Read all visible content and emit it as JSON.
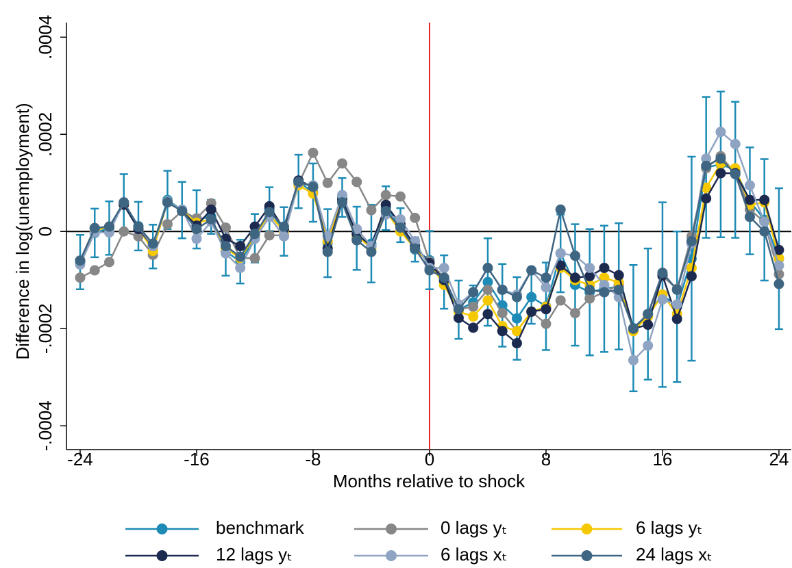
{
  "chart_data": {
    "type": "line",
    "x_label": "Months relative to shock",
    "y_label": "Difference in log(unemployment)",
    "x": [
      -24,
      -23,
      -22,
      -21,
      -20,
      -19,
      -18,
      -17,
      -16,
      -15,
      -14,
      -13,
      -12,
      -11,
      -10,
      -9,
      -8,
      -7,
      -6,
      -5,
      -4,
      -3,
      -2,
      -1,
      0,
      1,
      2,
      3,
      4,
      5,
      6,
      7,
      8,
      9,
      10,
      11,
      12,
      13,
      14,
      15,
      16,
      17,
      18,
      19,
      20,
      21,
      22,
      23,
      24
    ],
    "xlim": [
      -24.94,
      24.85
    ],
    "xticks": [
      -24,
      -16,
      -8,
      0,
      8,
      16,
      24
    ],
    "ylim": [
      -0.000449,
      0.00043
    ],
    "yticks": [
      {
        "value": -0.0004,
        "label": "-.0004"
      },
      {
        "value": -0.0002,
        "label": "-.0002"
      },
      0,
      {
        "value": 0.0002,
        "label": ".0002"
      },
      {
        "value": 0.0004,
        "label": ".0004"
      }
    ],
    "hline": 0,
    "hline_color": "#000000",
    "vline": 0,
    "vline_color": "#e8262a",
    "series": [
      {
        "name": "benchmark",
        "color": "#1d8bb5",
        "values": [
          -6.3e-05,
          -3e-06,
          7e-06,
          5.8e-05,
          1.1e-05,
          -3.1e-05,
          6.5e-05,
          4.4e-05,
          2.5e-05,
          3e-05,
          -4.1e-05,
          -6.2e-05,
          -1.4e-05,
          4.6e-05,
          0,
          0.000103,
          8e-05,
          -2.4e-05,
          7e-05,
          -1.4e-05,
          -2.5e-05,
          4.8e-05,
          1.3e-05,
          -3.7e-05,
          -5.9e-05,
          -0.000104,
          -0.000161,
          -0.000146,
          -0.000104,
          -0.000152,
          -0.000179,
          -0.000135,
          -0.000154,
          -4.5e-05,
          -0.00011,
          -0.000125,
          -0.000118,
          -0.000113,
          -0.000199,
          -0.00017,
          -0.00013,
          -0.000155,
          -5.6e-05,
          0.000132,
          0.000138,
          0.000127,
          6.3e-05,
          2.4e-05,
          -5.6e-05
        ],
        "errors": [
          5.6e-05,
          5e-05,
          5.5e-05,
          6e-05,
          5e-05,
          4.5e-05,
          6e-05,
          5.8e-05,
          6e-05,
          3.5e-05,
          5e-05,
          4.5e-05,
          5e-05,
          4.5e-05,
          5e-05,
          5.5e-05,
          6e-05,
          7e-05,
          4e-05,
          6.5e-05,
          8e-05,
          4.5e-05,
          3.5e-05,
          2.5e-05,
          6e-05,
          5.5e-05,
          6e-05,
          3.5e-05,
          9e-05,
          8.5e-05,
          8.5e-05,
          5.5e-05,
          9e-05,
          8e-05,
          0.000125,
          0.00013,
          0.00013,
          0.00013,
          0.00013,
          0.000135,
          0.00019,
          0.000155,
          0.00021,
          0.000145,
          0.00015,
          0.00014,
          0.00011,
          0.000125,
          0.000145
        ]
      },
      {
        "name": "0 lags yₜ",
        "color": "#878787",
        "values": [
          -9.5e-05,
          -8e-05,
          -6.3e-05,
          0,
          -1e-05,
          -4.8e-05,
          1.5e-05,
          4.2e-05,
          2.7e-05,
          5.8e-05,
          8e-06,
          -5.5e-05,
          -5.5e-05,
          -8e-06,
          -8e-06,
          9.8e-05,
          0.000162,
          0.0001,
          0.00014,
          0.000102,
          4.4e-05,
          7.5e-05,
          7.2e-05,
          2.8e-05,
          -6.2e-05,
          -9.5e-05,
          -0.00016,
          -0.000155,
          -0.00012,
          -0.000168,
          -0.000205,
          -0.000165,
          -0.00019,
          -0.000142,
          -0.000168,
          -0.000138,
          -0.000125,
          -0.00011,
          -0.000202,
          -0.00017,
          -9.2e-05,
          -0.000118,
          -1e-05,
          0.00013,
          0.000155,
          0.00012,
          4.5e-05,
          2e-05,
          -8.8e-05
        ]
      },
      {
        "name": "6 lags yₜ",
        "color": "#f6c800",
        "values": [
          -6e-05,
          2e-06,
          1e-05,
          5.5e-05,
          8e-06,
          -4e-05,
          6.2e-05,
          4.2e-05,
          1.8e-05,
          2.5e-05,
          -3.5e-05,
          -5.5e-05,
          -1e-05,
          3.5e-05,
          0,
          9.5e-05,
          7.8e-05,
          -2e-05,
          6.5e-05,
          -8e-06,
          -3.5e-05,
          4.2e-05,
          0,
          -3.5e-05,
          -6.5e-05,
          -0.00011,
          -0.000165,
          -0.000175,
          -0.000142,
          -0.000195,
          -0.000205,
          -0.000165,
          -0.000155,
          -7.5e-05,
          -0.0001,
          -0.00011,
          -9.5e-05,
          -0.000105,
          -0.000205,
          -0.000175,
          -0.00013,
          -0.00017,
          -7.5e-05,
          9e-05,
          0.00014,
          0.00013,
          5.5e-05,
          6e-05,
          -5.5e-05
        ]
      },
      {
        "name": "12 lags yₜ",
        "color": "#1d2a50",
        "values": [
          -6e-05,
          7e-06,
          1e-05,
          5.5e-05,
          5e-06,
          -3e-05,
          6e-05,
          4.2e-05,
          1.2e-05,
          4.5e-05,
          -1.5e-05,
          -3e-05,
          1e-05,
          5.2e-05,
          5e-06,
          0.000105,
          9.2e-05,
          -3.5e-05,
          6.5e-05,
          -5e-06,
          -3e-05,
          5.5e-05,
          1.5e-05,
          -3e-05,
          -6.5e-05,
          -0.0001,
          -0.000178,
          -0.000198,
          -0.00017,
          -0.000205,
          -0.00023,
          -0.000165,
          -0.00016,
          -7e-05,
          -9.5e-05,
          -9.2e-05,
          -7.5e-05,
          -9e-05,
          -0.0002,
          -0.000192,
          -9e-05,
          -0.00018,
          -9.2e-05,
          6.8e-05,
          0.00012,
          0.00012,
          6.5e-05,
          6.5e-05,
          -3.8e-05
        ]
      },
      {
        "name": "6 lags xₜ",
        "color": "#8fa4c2",
        "values": [
          -6.8e-05,
          -2e-06,
          -2e-06,
          6e-05,
          1e-05,
          -3e-05,
          6.2e-05,
          4.5e-05,
          -1.5e-05,
          2e-05,
          -4.5e-05,
          -7.5e-05,
          -1.5e-05,
          3e-05,
          -1e-05,
          0.0001,
          9.5e-05,
          -1e-05,
          7.5e-05,
          5e-06,
          -3e-05,
          3.5e-05,
          2.5e-05,
          -2e-05,
          -7.5e-05,
          -7.5e-05,
          -0.00015,
          -0.000125,
          -7.5e-05,
          -0.00012,
          -0.00013,
          -8e-05,
          -0.000115,
          -4.5e-05,
          -5e-05,
          -7.5e-05,
          -0.00011,
          -0.000135,
          -0.000265,
          -0.000235,
          -0.00014,
          -0.00015,
          -2.5e-05,
          0.00015,
          0.000205,
          0.00018,
          9.5e-05,
          2e-05,
          -7e-05
        ]
      },
      {
        "name": "24 lags xₜ",
        "color": "#3e6582",
        "values": [
          -6e-05,
          7e-06,
          1e-05,
          6e-05,
          1e-05,
          -2.5e-05,
          6e-05,
          4.2e-05,
          5e-06,
          2.5e-05,
          -3e-05,
          -5.2e-05,
          -5e-06,
          4e-05,
          1e-05,
          0.000102,
          9.2e-05,
          -4.2e-05,
          6e-05,
          -1.8e-05,
          -4.2e-05,
          4.2e-05,
          8e-06,
          -3.5e-05,
          -8e-05,
          -9.5e-05,
          -0.00016,
          -0.000125,
          -7.5e-05,
          -0.00012,
          -0.000135,
          -8e-05,
          -9.5e-05,
          4.5e-05,
          -5e-05,
          -0.00012,
          -0.000125,
          -0.00012,
          -0.0002,
          -0.00017,
          -8.5e-05,
          -0.00012,
          -2e-05,
          0.000135,
          0.00015,
          0.000118,
          3e-05,
          0,
          -0.000108
        ]
      }
    ]
  }
}
